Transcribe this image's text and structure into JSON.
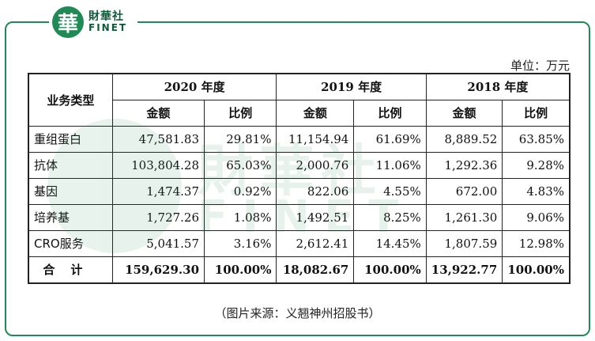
{
  "logo": {
    "mark": "華",
    "name_cn": "財華社",
    "name_en": "FINET"
  },
  "watermark": {
    "cn": "財華社",
    "en": "FINET"
  },
  "unit_label": "单位：万元",
  "table": {
    "corner_header": "业务类型",
    "years": [
      "2020 年度",
      "2019 年度",
      "2018 年度"
    ],
    "sub_headers": {
      "amount": "金额",
      "ratio": "比例"
    },
    "rows": [
      {
        "category": "重组蛋白",
        "values": [
          "47,581.83",
          "29.81%",
          "11,154.94",
          "61.69%",
          "8,889.52",
          "63.85%"
        ]
      },
      {
        "category": "抗体",
        "values": [
          "103,804.28",
          "65.03%",
          "2,000.76",
          "11.06%",
          "1,292.36",
          "9.28%"
        ]
      },
      {
        "category": "基因",
        "values": [
          "1,474.37",
          "0.92%",
          "822.06",
          "4.55%",
          "672.00",
          "4.83%"
        ]
      },
      {
        "category": "培养基",
        "values": [
          "1,727.26",
          "1.08%",
          "1,492.51",
          "8.25%",
          "1,261.30",
          "9.06%"
        ]
      },
      {
        "category": "CRO服务",
        "values": [
          "5,041.57",
          "3.16%",
          "2,612.41",
          "14.45%",
          "1,807.59",
          "12.98%"
        ]
      }
    ],
    "total": {
      "category": "合计",
      "values": [
        "159,629.30",
        "100.00%",
        "18,082.67",
        "100.00%",
        "13,922.77",
        "100.00%"
      ]
    }
  },
  "source_note": "（图片来源：义翘神州招股书）",
  "colors": {
    "brand_green": "#1f8a55"
  }
}
